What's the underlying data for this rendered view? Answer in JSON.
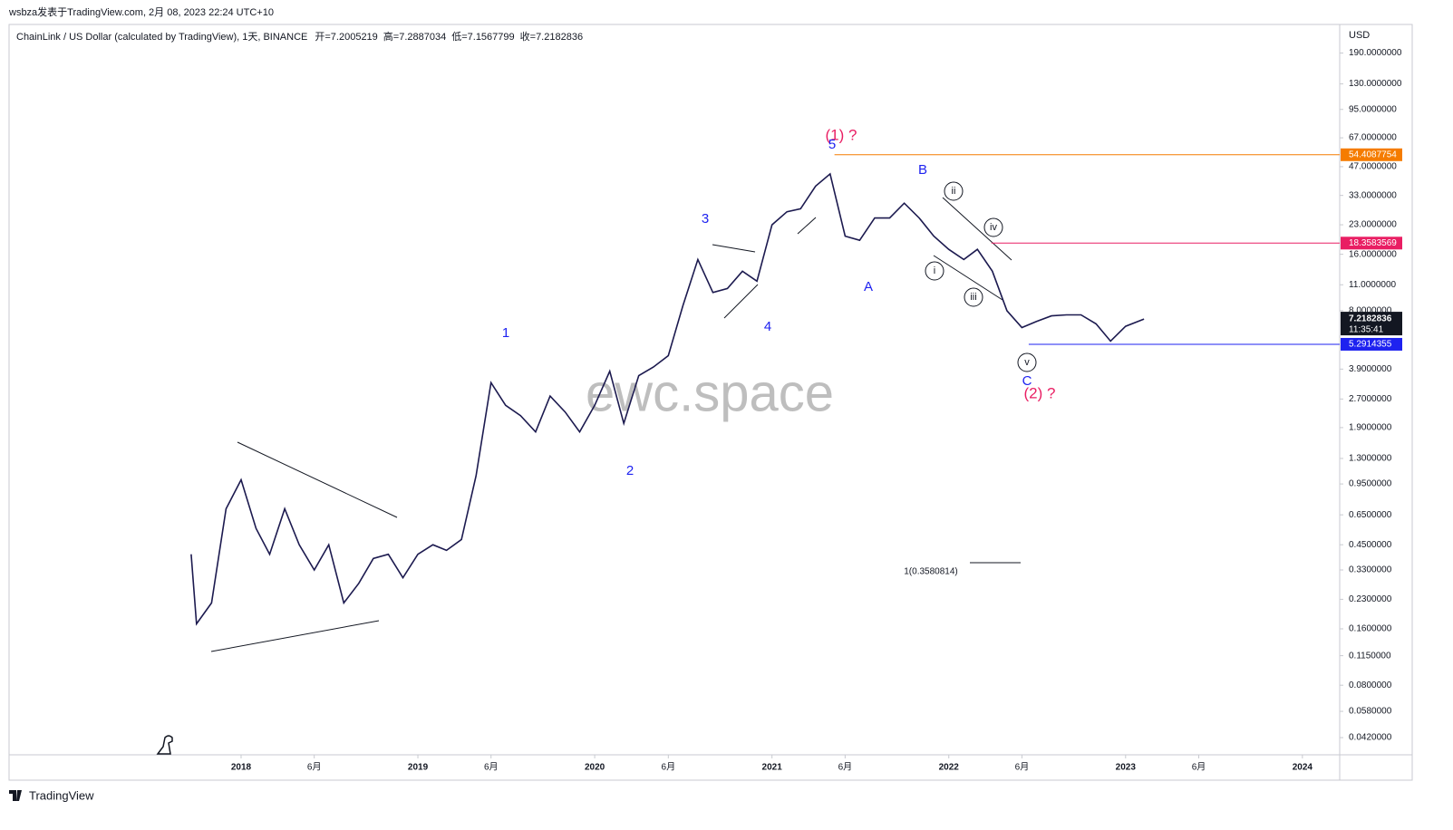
{
  "header": {
    "author_line": "wsbza发表于TradingView.com, 2月 08, 2023 22:24 UTC+10",
    "symbol": "ChainLink / US Dollar (calculated by TradingView), 1天, BINANCE",
    "ohlc": [
      "开=7.2005219",
      "高=7.2887034",
      "低=7.1567799",
      "收=7.2182836"
    ]
  },
  "chart_data": {
    "type": "line",
    "color": "#1c1a4f",
    "log_scale": true,
    "grid": false,
    "currency": "USD",
    "x": [
      "2017-09-20",
      "2017-10-01",
      "2017-11-01",
      "2017-12-01",
      "2018-01-01",
      "2018-02-01",
      "2018-03-01",
      "2018-04-01",
      "2018-05-01",
      "2018-06-01",
      "2018-07-01",
      "2018-08-01",
      "2018-09-01",
      "2018-10-01",
      "2018-11-01",
      "2018-12-01",
      "2019-01-01",
      "2019-02-01",
      "2019-03-01",
      "2019-04-01",
      "2019-05-01",
      "2019-06-01",
      "2019-07-01",
      "2019-08-01",
      "2019-09-01",
      "2019-10-01",
      "2019-11-01",
      "2019-12-01",
      "2020-01-01",
      "2020-02-01",
      "2020-03-01",
      "2020-04-01",
      "2020-05-01",
      "2020-06-01",
      "2020-07-01",
      "2020-08-01",
      "2020-09-01",
      "2020-10-01",
      "2020-11-01",
      "2020-12-01",
      "2021-01-01",
      "2021-02-01",
      "2021-03-01",
      "2021-04-01",
      "2021-05-01",
      "2021-06-01",
      "2021-07-01",
      "2021-08-01",
      "2021-09-01",
      "2021-10-01",
      "2021-11-01",
      "2021-12-01",
      "2022-01-01",
      "2022-02-01",
      "2022-03-01",
      "2022-04-01",
      "2022-05-01",
      "2022-06-01",
      "2022-07-01",
      "2022-08-01",
      "2022-09-01",
      "2022-10-01",
      "2022-11-01",
      "2022-12-01",
      "2023-01-01",
      "2023-02-08"
    ],
    "values": [
      0.4,
      0.17,
      0.22,
      0.7,
      1.0,
      0.55,
      0.4,
      0.7,
      0.45,
      0.33,
      0.45,
      0.22,
      0.28,
      0.38,
      0.4,
      0.3,
      0.4,
      0.45,
      0.42,
      0.48,
      1.05,
      3.3,
      2.5,
      2.2,
      1.8,
      2.8,
      2.3,
      1.8,
      2.5,
      3.8,
      2.0,
      3.6,
      4.0,
      4.6,
      8.5,
      15,
      10,
      10.5,
      13,
      11.5,
      23,
      27,
      28,
      37,
      43,
      20,
      19,
      25,
      25,
      30,
      25,
      20,
      17,
      15,
      17,
      13,
      8,
      6.5,
      7,
      7.5,
      7.6,
      7.6,
      6.8,
      5.5,
      6.6,
      7.2182836
    ],
    "last_countdown": "11:35:41",
    "xlim": [
      "2016-09-09",
      "2024-03-18"
    ],
    "ylim": [
      0.034,
      270
    ],
    "yticks": [
      {
        "value": 190,
        "label": "190.0000000"
      },
      {
        "value": 130,
        "label": "130.0000000"
      },
      {
        "value": 95,
        "label": "95.0000000"
      },
      {
        "value": 67,
        "label": "67.0000000"
      },
      {
        "value": 47,
        "label": "47.0000000"
      },
      {
        "value": 33,
        "label": "33.0000000"
      },
      {
        "value": 23,
        "label": "23.0000000"
      },
      {
        "value": 16,
        "label": "16.0000000"
      },
      {
        "value": 11,
        "label": "11.0000000"
      },
      {
        "value": 8,
        "label": "8.0000000"
      },
      {
        "value": 3.9,
        "label": "3.9000000"
      },
      {
        "value": 2.7,
        "label": "2.7000000"
      },
      {
        "value": 1.9,
        "label": "1.9000000"
      },
      {
        "value": 1.3,
        "label": "1.3000000"
      },
      {
        "value": 0.95,
        "label": "0.9500000"
      },
      {
        "value": 0.65,
        "label": "0.6500000"
      },
      {
        "value": 0.45,
        "label": "0.4500000"
      },
      {
        "value": 0.33,
        "label": "0.3300000"
      },
      {
        "value": 0.23,
        "label": "0.2300000"
      },
      {
        "value": 0.16,
        "label": "0.1600000"
      },
      {
        "value": 0.115,
        "label": "0.1150000"
      },
      {
        "value": 0.08,
        "label": "0.0800000"
      },
      {
        "value": 0.058,
        "label": "0.0580000"
      },
      {
        "value": 0.042,
        "label": "0.0420000"
      }
    ],
    "xticks": [
      {
        "value": "2018-01-01",
        "label": "2018"
      },
      {
        "value": "2018-06-01",
        "label": "6月"
      },
      {
        "value": "2019-01-01",
        "label": "2019"
      },
      {
        "value": "2019-06-01",
        "label": "6月"
      },
      {
        "value": "2020-01-01",
        "label": "2020"
      },
      {
        "value": "2020-06-01",
        "label": "6月"
      },
      {
        "value": "2021-01-01",
        "label": "2021"
      },
      {
        "value": "2021-06-01",
        "label": "6月"
      },
      {
        "value": "2022-01-01",
        "label": "2022"
      },
      {
        "value": "2022-06-01",
        "label": "6月"
      },
      {
        "value": "2023-01-01",
        "label": "2023"
      },
      {
        "value": "2023-06-01",
        "label": "6月"
      },
      {
        "value": "2024-01-01",
        "label": "2024"
      }
    ],
    "levels": [
      {
        "value": 54.4087754,
        "color": "#f57c00",
        "from": "2021-05-10"
      },
      {
        "value": 18.3583569,
        "color": "#e91e63",
        "from": "2022-03-30"
      },
      {
        "value": 5.2914355,
        "color": "#1e22f0",
        "from": "2022-06-15"
      }
    ],
    "annotations": [
      {
        "text": "(1) ?",
        "color": "#e91e63"
      },
      {
        "text": "5",
        "color": "#1e22f0"
      },
      {
        "text": "1",
        "color": "#1e22f0"
      },
      {
        "text": "2",
        "color": "#1e22f0"
      },
      {
        "text": "3",
        "color": "#1e22f0"
      },
      {
        "text": "4",
        "color": "#1e22f0"
      },
      {
        "text": "A",
        "color": "#1e22f0"
      },
      {
        "text": "B",
        "color": "#1e22f0"
      },
      {
        "text": "C",
        "color": "#1e22f0"
      },
      {
        "text": "i",
        "color": "#131722"
      },
      {
        "text": "ii",
        "color": "#131722"
      },
      {
        "text": "iii",
        "color": "#131722"
      },
      {
        "text": "iv",
        "color": "#131722"
      },
      {
        "text": "v",
        "color": "#131722"
      },
      {
        "text": "(2) ?",
        "color": "#e91e63"
      },
      {
        "text": "1(0.3580814)",
        "color": "#131722"
      }
    ],
    "watermark": "ewc.space"
  },
  "footer": {
    "brand": "TradingView"
  }
}
